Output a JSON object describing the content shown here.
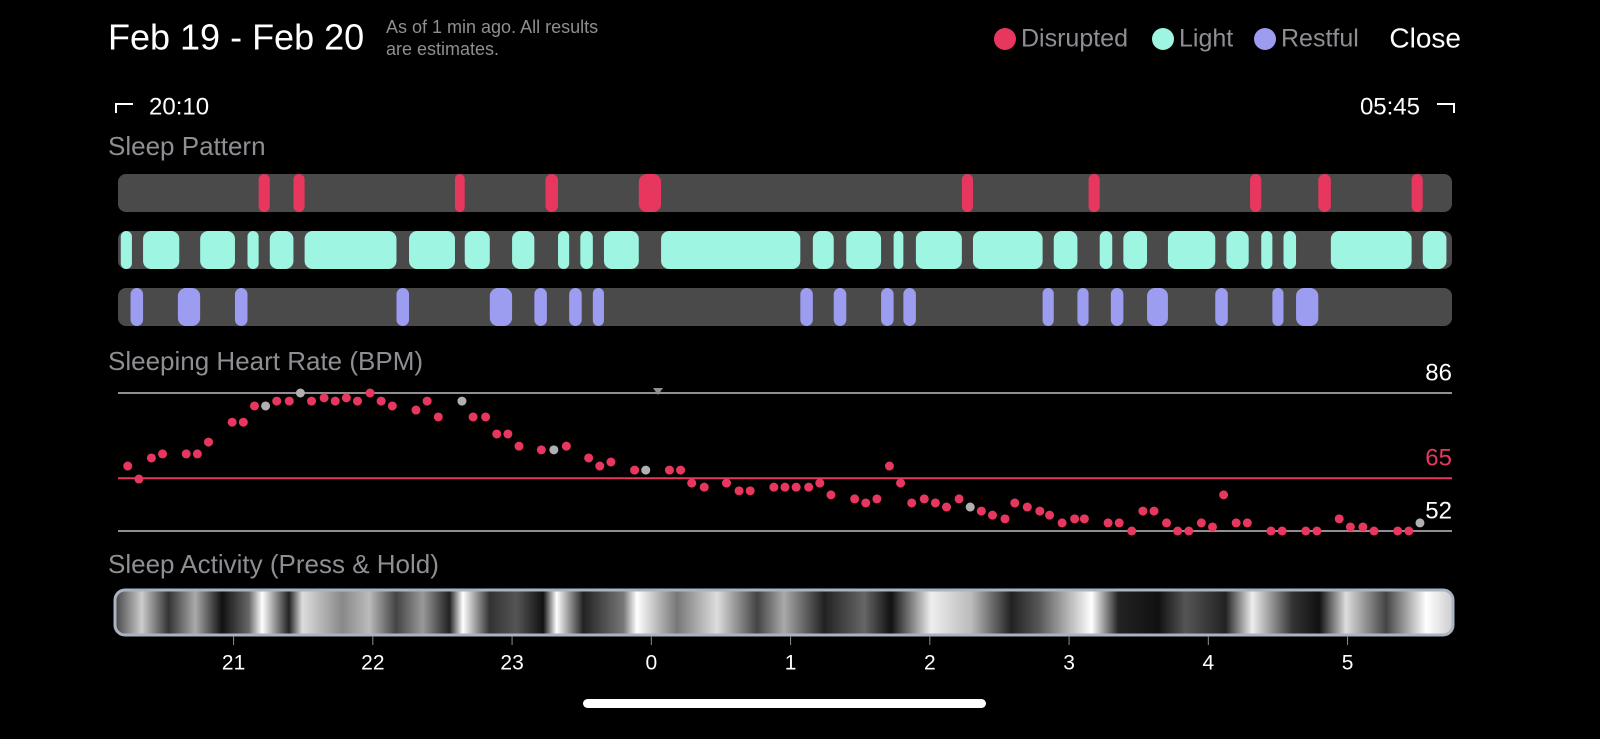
{
  "header": {
    "title": "Feb 19 - Feb 20",
    "note_lines": [
      "As of 1 min ago. All results",
      "are estimates."
    ],
    "close": "Close"
  },
  "legend": [
    {
      "name": "Disrupted",
      "color": "#e8375f"
    },
    {
      "name": "Light",
      "color": "#9ef5e2"
    },
    {
      "name": "Restful",
      "color": "#9c9cf0"
    }
  ],
  "range": {
    "start": "20:10",
    "end": "05:45"
  },
  "time_axis": {
    "xlim": [
      20.17,
      29.75
    ],
    "xticks": [
      21,
      22,
      23,
      {
        "value": 24,
        "label": "0"
      },
      {
        "value": 25,
        "label": "1"
      },
      {
        "value": 26,
        "label": "2"
      },
      {
        "value": 27,
        "label": "3"
      },
      {
        "value": 28,
        "label": "4"
      },
      {
        "value": 29,
        "label": "5"
      }
    ]
  },
  "sleep_pattern": {
    "title": "Sleep Pattern",
    "rows": [
      {
        "name": "Disrupted",
        "segments": [
          [
            21.18,
            21.26
          ],
          [
            21.43,
            21.51
          ],
          [
            22.59,
            22.66
          ],
          [
            23.24,
            23.33
          ],
          [
            23.91,
            24.07
          ],
          [
            26.23,
            26.31
          ],
          [
            27.14,
            27.22
          ],
          [
            28.3,
            28.38
          ],
          [
            28.79,
            28.88
          ],
          [
            29.46,
            29.54
          ]
        ]
      },
      {
        "name": "Light",
        "segments": [
          [
            20.19,
            20.27
          ],
          [
            20.35,
            20.61
          ],
          [
            20.76,
            21.01
          ],
          [
            21.1,
            21.18
          ],
          [
            21.26,
            21.43
          ],
          [
            21.51,
            22.17
          ],
          [
            22.26,
            22.59
          ],
          [
            22.66,
            22.84
          ],
          [
            23.0,
            23.16
          ],
          [
            23.33,
            23.41
          ],
          [
            23.49,
            23.58
          ],
          [
            23.66,
            23.91
          ],
          [
            24.07,
            25.07
          ],
          [
            25.16,
            25.31
          ],
          [
            25.4,
            25.65
          ],
          [
            25.74,
            25.81
          ],
          [
            25.9,
            26.23
          ],
          [
            26.31,
            26.81
          ],
          [
            26.89,
            27.06
          ],
          [
            27.22,
            27.31
          ],
          [
            27.39,
            27.56
          ],
          [
            27.71,
            28.05
          ],
          [
            28.13,
            28.29
          ],
          [
            28.38,
            28.46
          ],
          [
            28.54,
            28.63
          ],
          [
            28.88,
            29.46
          ],
          [
            29.54,
            29.71
          ]
        ]
      },
      {
        "name": "Restful",
        "segments": [
          [
            20.26,
            20.35
          ],
          [
            20.6,
            20.76
          ],
          [
            21.01,
            21.1
          ],
          [
            22.17,
            22.26
          ],
          [
            22.84,
            23.0
          ],
          [
            23.16,
            23.25
          ],
          [
            23.41,
            23.5
          ],
          [
            23.58,
            23.66
          ],
          [
            25.07,
            25.16
          ],
          [
            25.31,
            25.4
          ],
          [
            25.65,
            25.74
          ],
          [
            25.81,
            25.9
          ],
          [
            26.81,
            26.89
          ],
          [
            27.06,
            27.14
          ],
          [
            27.3,
            27.39
          ],
          [
            27.56,
            27.71
          ],
          [
            28.05,
            28.14
          ],
          [
            28.46,
            28.54
          ],
          [
            28.63,
            28.79
          ]
        ]
      }
    ]
  },
  "heart_rate": {
    "type": "scatter",
    "title": "Sleeping Heart Rate (BPM)",
    "ylim": [
      52,
      86
    ],
    "yticks": [
      52,
      65,
      86
    ],
    "ytick_colors": [
      "#ffffff",
      "#e8375f",
      "#ffffff"
    ],
    "line_colors": [
      "#8e8e93",
      "#e8375f",
      "#8e8e93"
    ],
    "series": [
      {
        "color": "#e8375f",
        "x": [
          20.24,
          20.32,
          20.41,
          20.49,
          20.66,
          20.74,
          20.82,
          20.99,
          21.07,
          21.15,
          21.31,
          21.4,
          21.56,
          21.65,
          21.73,
          21.81,
          21.89,
          21.98,
          22.06,
          22.14,
          22.31,
          22.39,
          22.47,
          22.72,
          22.81,
          22.89,
          22.97,
          23.05,
          23.21,
          23.39,
          23.55,
          23.63,
          23.71,
          23.88,
          24.13,
          24.21,
          24.29,
          24.38,
          24.54,
          24.63,
          24.71,
          24.88,
          24.96,
          25.04,
          25.13,
          25.21,
          25.29,
          25.46,
          25.54,
          25.62,
          25.71,
          25.79,
          25.87,
          25.96,
          26.04,
          26.12,
          26.21,
          26.37,
          26.45,
          26.54,
          26.61,
          26.7,
          26.79,
          26.86,
          26.95,
          27.04,
          27.11,
          27.28,
          27.36,
          27.45,
          27.53,
          27.61,
          27.7,
          27.78,
          27.86,
          27.95,
          28.03,
          28.11,
          28.2,
          28.28,
          28.45,
          28.53,
          28.7,
          28.78,
          28.94,
          29.02,
          29.11,
          29.19,
          29.36,
          29.44
        ],
        "values": [
          68,
          64.8,
          70,
          71,
          71,
          71,
          73.9,
          78.8,
          78.8,
          82.8,
          84,
          84,
          84,
          84.8,
          84,
          84.8,
          84,
          86,
          84,
          82.8,
          81.8,
          84,
          80.1,
          80.1,
          80.1,
          75.9,
          75.9,
          72.9,
          72,
          72.9,
          70,
          68,
          69,
          67,
          67,
          67,
          63.8,
          62.8,
          63.8,
          61.9,
          61.9,
          62.8,
          62.8,
          62.8,
          62.8,
          63.8,
          60.9,
          59.9,
          58.9,
          59.9,
          68,
          63.8,
          58.9,
          59.9,
          58.9,
          57.9,
          59.9,
          56.9,
          55.9,
          55,
          58.9,
          57.9,
          56.9,
          55.9,
          54,
          55,
          55,
          54,
          54,
          52,
          56.9,
          56.9,
          54,
          52,
          52,
          54,
          53,
          60.9,
          54,
          54,
          52,
          52,
          52,
          52,
          55,
          53,
          53,
          52,
          52,
          52
        ]
      },
      {
        "color": "#b0b0b0",
        "x": [
          21.23,
          21.48,
          22.64,
          23.3,
          23.96,
          26.29,
          29.52
        ],
        "values": [
          82.8,
          86,
          84,
          72,
          67,
          57.9,
          54
        ]
      }
    ]
  },
  "activity": {
    "title": "Sleep Activity (Press & Hold)"
  }
}
